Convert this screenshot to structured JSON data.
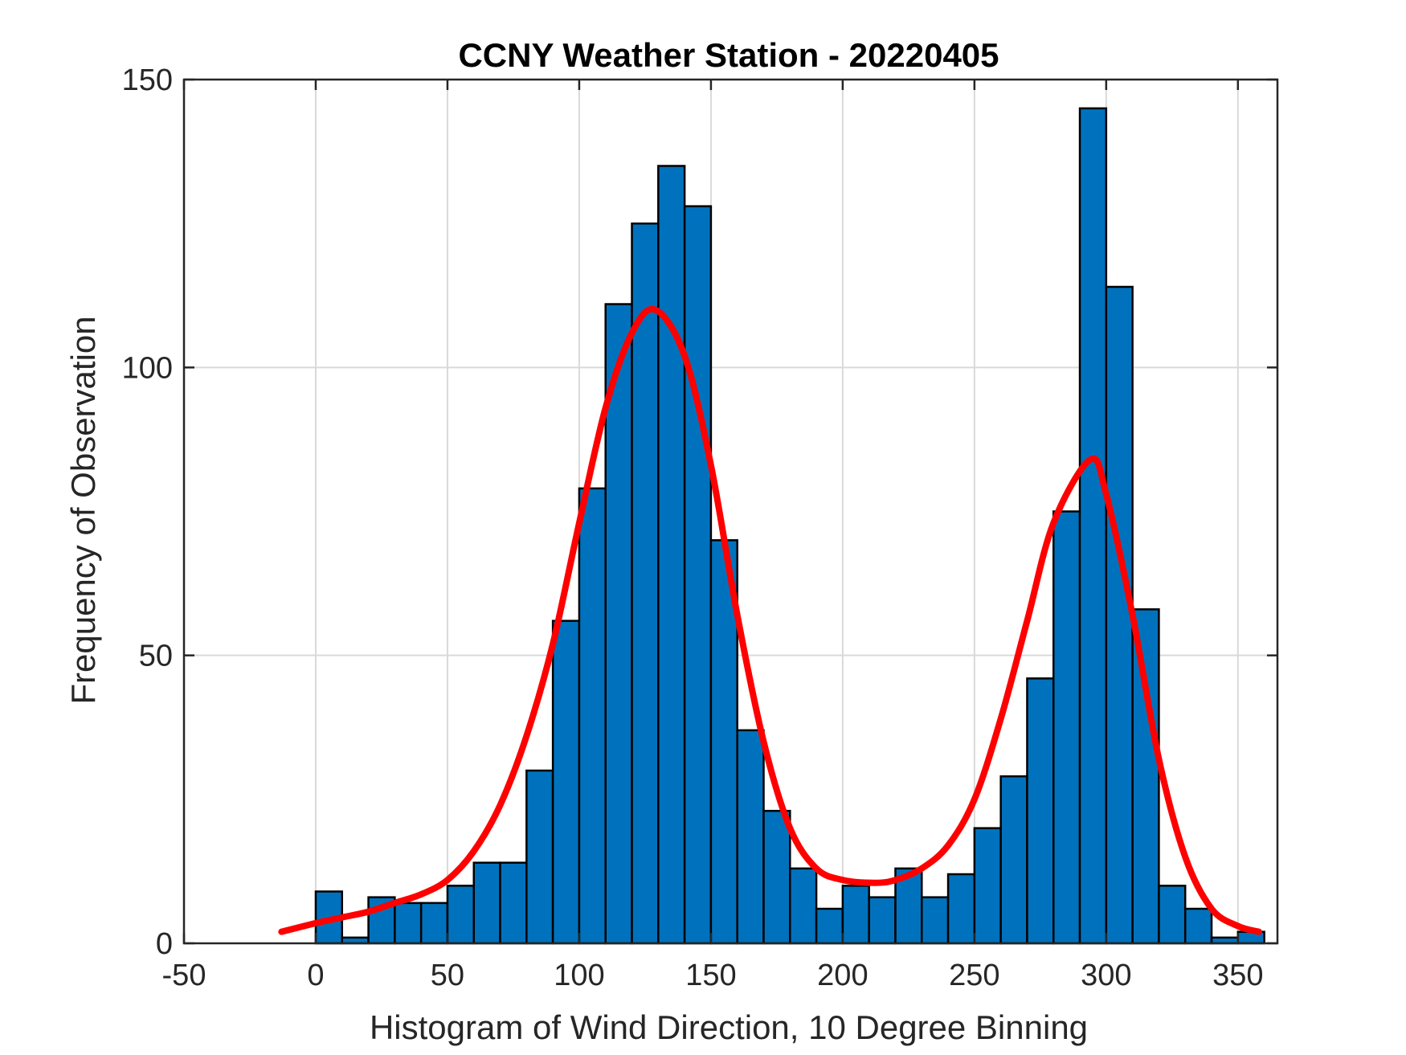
{
  "chart_data": {
    "type": "bar",
    "title": "CCNY Weather Station - 20220405",
    "xlabel": "Histogram of Wind Direction, 10 Degree Binning",
    "ylabel": "Frequency of Observation",
    "xlim": [
      -50,
      365
    ],
    "ylim": [
      0,
      150
    ],
    "xticks": [
      -50,
      0,
      50,
      100,
      150,
      200,
      250,
      300,
      350
    ],
    "yticks": [
      0,
      50,
      100,
      150
    ],
    "grid": true,
    "bin_width": 10,
    "bin_starts": [
      0,
      10,
      20,
      30,
      40,
      50,
      60,
      70,
      80,
      90,
      100,
      110,
      120,
      130,
      140,
      150,
      160,
      170,
      180,
      190,
      200,
      210,
      220,
      230,
      240,
      250,
      260,
      270,
      280,
      290,
      300,
      310,
      320,
      330,
      340,
      350
    ],
    "values": [
      9,
      1,
      8,
      7,
      7,
      10,
      14,
      14,
      30,
      56,
      79,
      111,
      125,
      135,
      128,
      70,
      37,
      23,
      13,
      6,
      10,
      8,
      13,
      8,
      12,
      20,
      29,
      46,
      75,
      145,
      114,
      58,
      10,
      6,
      1,
      2
    ],
    "bar_color": "#0072bd",
    "fit_curve": {
      "color": "#ff0000",
      "x": [
        -13,
        0,
        10,
        20,
        30,
        40,
        50,
        60,
        70,
        80,
        90,
        100,
        110,
        120,
        129,
        140,
        150,
        160,
        170,
        180,
        190,
        200,
        212,
        220,
        230,
        240,
        250,
        260,
        270,
        280,
        294,
        300,
        310,
        320,
        330,
        340,
        350,
        358
      ],
      "y": [
        2,
        3.5,
        4.5,
        5.5,
        7,
        8.5,
        11,
        16,
        24,
        36,
        52,
        73,
        93,
        106,
        110,
        102,
        83,
        57,
        35,
        20,
        13,
        11,
        10.5,
        11,
        13,
        17,
        25,
        39,
        56,
        73,
        84,
        78,
        57,
        32,
        15,
        6,
        3,
        2
      ]
    }
  }
}
